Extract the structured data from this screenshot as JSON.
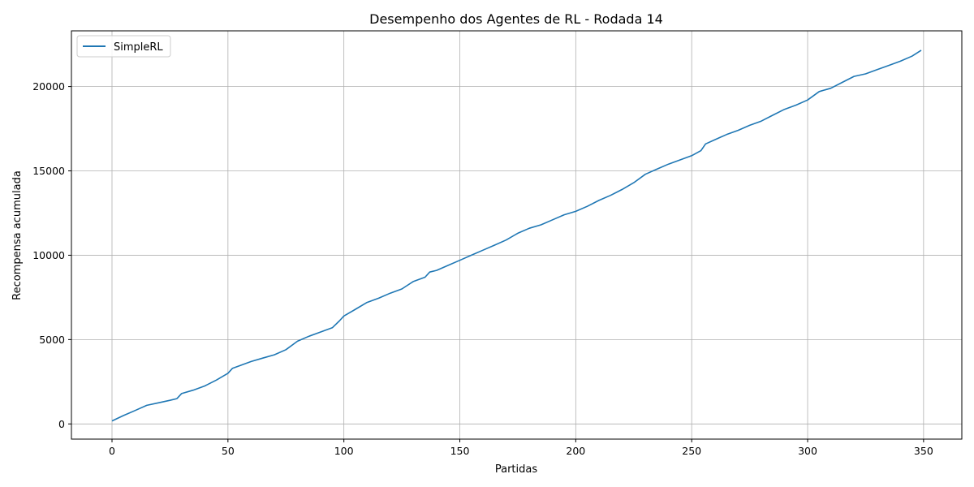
{
  "chart_data": {
    "type": "line",
    "title": "Desempenho dos Agentes de RL - Rodada 14",
    "xlabel": "Partidas",
    "ylabel": "Recompensa acumulada",
    "xlim": [
      -17.5,
      366.5
    ],
    "ylim": [
      -900,
      23300
    ],
    "xticks": [
      0,
      50,
      100,
      150,
      200,
      250,
      300,
      350
    ],
    "yticks": [
      0,
      5000,
      10000,
      15000,
      20000
    ],
    "grid": true,
    "legend_position": "top-left",
    "series": [
      {
        "name": "SimpleRL",
        "color": "#1f77b4",
        "x": [
          0,
          5,
          10,
          15,
          20,
          25,
          28,
          30,
          35,
          40,
          45,
          50,
          52,
          55,
          60,
          65,
          70,
          75,
          80,
          85,
          90,
          95,
          98,
          100,
          105,
          110,
          115,
          120,
          125,
          130,
          135,
          137,
          140,
          145,
          150,
          155,
          160,
          165,
          170,
          175,
          180,
          185,
          190,
          195,
          200,
          205,
          210,
          215,
          220,
          225,
          230,
          235,
          240,
          245,
          250,
          254,
          256,
          260,
          265,
          270,
          275,
          280,
          285,
          290,
          295,
          300,
          305,
          310,
          315,
          320,
          325,
          330,
          335,
          340,
          345,
          349
        ],
        "y": [
          180,
          500,
          800,
          1100,
          1250,
          1400,
          1500,
          1800,
          2000,
          2250,
          2600,
          3000,
          3300,
          3450,
          3700,
          3900,
          4100,
          4400,
          4900,
          5200,
          5450,
          5700,
          6100,
          6400,
          6800,
          7200,
          7450,
          7750,
          8000,
          8450,
          8700,
          9000,
          9100,
          9400,
          9700,
          10000,
          10300,
          10600,
          10900,
          11300,
          11600,
          11800,
          12100,
          12400,
          12600,
          12900,
          13250,
          13550,
          13900,
          14300,
          14800,
          15100,
          15400,
          15650,
          15900,
          16200,
          16600,
          16850,
          17150,
          17400,
          17700,
          17950,
          18300,
          18650,
          18900,
          19200,
          19700,
          19900,
          20250,
          20600,
          20750,
          21000,
          21250,
          21500,
          21800,
          22150
        ]
      }
    ]
  }
}
